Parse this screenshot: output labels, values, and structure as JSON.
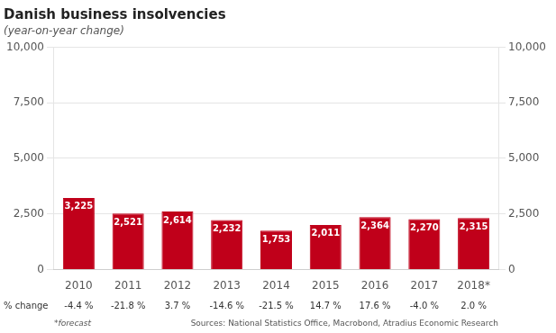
{
  "chart_data": {
    "type": "bar",
    "title": "Danish business insolvencies",
    "subtitle": "(year-on-year change)",
    "categories": [
      "2010",
      "2011",
      "2012",
      "2013",
      "2014",
      "2015",
      "2016",
      "2017",
      "2018*"
    ],
    "values": [
      3225,
      2521,
      2614,
      2232,
      1753,
      2011,
      2364,
      2270,
      2315
    ],
    "value_labels": [
      "3,225",
      "2,521",
      "2,614",
      "2,232",
      "1,753",
      "2,011",
      "2,364",
      "2,270",
      "2,315"
    ],
    "data_labels": true,
    "color": "#c0001a",
    "ylim": [
      0,
      10000
    ],
    "yticks": [
      0,
      {
        "value": 2500,
        "label": "2,500"
      },
      {
        "value": 5000,
        "label": "5,000"
      },
      {
        "value": 7500,
        "label": "7,500"
      },
      {
        "value": 10000,
        "label": "10,000"
      }
    ],
    "y2lim": [
      0,
      10000
    ],
    "y2ticks": [
      0,
      {
        "value": 2500,
        "label": "2,500"
      },
      {
        "value": 5000,
        "label": "5,000"
      },
      {
        "value": 7500,
        "label": "7,500"
      },
      {
        "value": 10000,
        "label": "10,000"
      }
    ],
    "grid": true,
    "change_label": "% change",
    "changes": [
      -4.4,
      -21.8,
      3.7,
      -14.6,
      -21.5,
      14.7,
      17.6,
      -4.0,
      2.0
    ],
    "change_labels": [
      "-4.4 %",
      "-21.8 %",
      "3.7 %",
      "-14.6 %",
      "-21.5 %",
      "14.7 %",
      "17.6 %",
      "-4.0 %",
      "2.0 %"
    ],
    "footnotes": [
      "*forecast",
      "Sources: National Statistics Office, Macrobond, Atradius Economic Research"
    ]
  }
}
